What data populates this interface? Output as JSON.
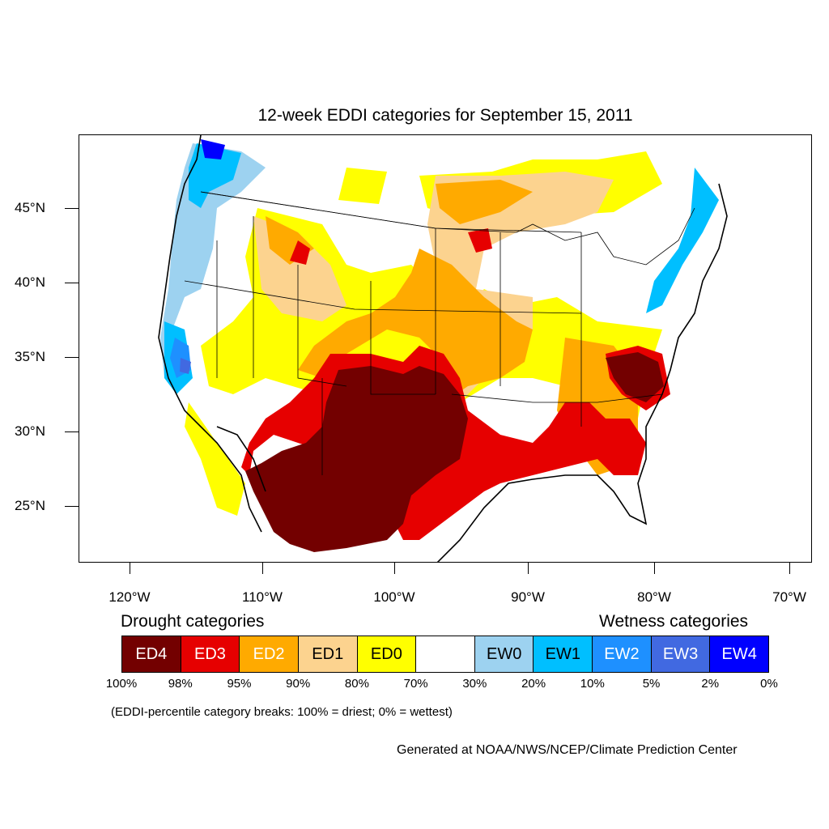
{
  "title": "12-week EDDI categories for September 15, 2011",
  "axes": {
    "lat_labels": [
      "45°N",
      "40°N",
      "35°N",
      "30°N",
      "25°N"
    ],
    "lon_labels": [
      "120°W",
      "110°W",
      "100°W",
      "90°W",
      "80°W",
      "70°W"
    ]
  },
  "legend": {
    "drought_heading": "Drought categories",
    "wetness_heading": "Wetness categories",
    "categories": [
      {
        "label": "ED4",
        "color": "#730000",
        "text_color": "#ffffff"
      },
      {
        "label": "ED3",
        "color": "#e60000",
        "text_color": "#ffffff"
      },
      {
        "label": "ED2",
        "color": "#ffaa00",
        "text_color": "#ffffff"
      },
      {
        "label": "ED1",
        "color": "#fcd38f",
        "text_color": "#000000"
      },
      {
        "label": "ED0",
        "color": "#ffff00",
        "text_color": "#000000"
      },
      {
        "label": "",
        "color": "#ffffff",
        "text_color": "#000000"
      },
      {
        "label": "EW0",
        "color": "#9dd2f0",
        "text_color": "#000000"
      },
      {
        "label": "EW1",
        "color": "#00bfff",
        "text_color": "#000000"
      },
      {
        "label": "EW2",
        "color": "#1e90ff",
        "text_color": "#ffffff"
      },
      {
        "label": "EW3",
        "color": "#4169e1",
        "text_color": "#ffffff"
      },
      {
        "label": "EW4",
        "color": "#0000ff",
        "text_color": "#ffffff"
      }
    ],
    "breaks": [
      "100%",
      "98%",
      "95%",
      "90%",
      "80%",
      "70%",
      "30%",
      "20%",
      "10%",
      "5%",
      "2%",
      "0%"
    ]
  },
  "footnote": "(EDDI-percentile category breaks: 100% = driest; 0% = wettest)",
  "credit": "Generated at NOAA/NWS/NCEP/Climate Prediction Center"
}
